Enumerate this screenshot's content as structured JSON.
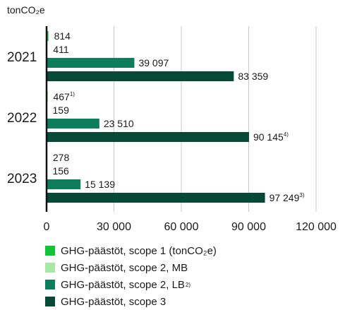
{
  "unit_label": "tonCO₂e",
  "chart_data": {
    "type": "bar",
    "orientation": "horizontal",
    "categories": [
      "2021",
      "2022",
      "2023"
    ],
    "xlim": [
      0,
      120000
    ],
    "xticks": [
      0,
      30000,
      60000,
      90000,
      120000
    ],
    "xtick_labels": [
      "0",
      "30 000",
      "60 000",
      "90 000",
      "120 000"
    ],
    "grid": true,
    "legend_position": "bottom",
    "series": [
      {
        "name": "GHG-päästöt, scope 1 (tonCO₂e)",
        "name_sup": "",
        "color": "#15c33a",
        "values": [
          814,
          467,
          278
        ],
        "labels": [
          "814",
          "467",
          "278"
        ],
        "label_sups": [
          "",
          "1)",
          ""
        ]
      },
      {
        "name": "GHG-päästöt, scope 2, MB",
        "name_sup": "",
        "color": "#a6e8a4",
        "values": [
          411,
          159,
          156
        ],
        "labels": [
          "411",
          "159",
          "156"
        ],
        "label_sups": [
          "",
          "",
          ""
        ]
      },
      {
        "name": "GHG-päästöt, scope 2, LB",
        "name_sup": "2)",
        "color": "#0d7d5b",
        "values": [
          39097,
          23510,
          15139
        ],
        "labels": [
          "39 097",
          "23 510",
          "15 139"
        ],
        "label_sups": [
          "",
          "",
          ""
        ]
      },
      {
        "name": "GHG-päästöt, scope 3",
        "name_sup": "",
        "color": "#064a35",
        "values": [
          83359,
          90145,
          97249
        ],
        "labels": [
          "83 359",
          "90 145",
          "97 249"
        ],
        "label_sups": [
          "",
          "4)",
          "3)"
        ]
      }
    ]
  }
}
